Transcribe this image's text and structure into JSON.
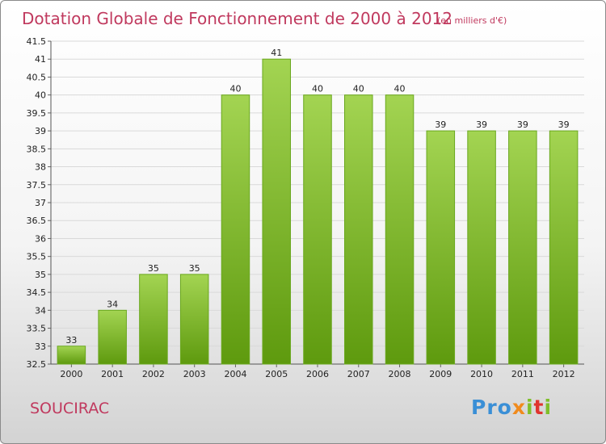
{
  "chart_data": {
    "type": "bar",
    "title": "Dotation Globale de Fonctionnement de 2000 à 2012",
    "subtitle": "(en milliers d'€)",
    "categories": [
      "2000",
      "2001",
      "2002",
      "2003",
      "2004",
      "2005",
      "2006",
      "2007",
      "2008",
      "2009",
      "2010",
      "2011",
      "2012"
    ],
    "values": [
      33,
      34,
      35,
      35,
      40,
      41,
      40,
      40,
      40,
      39,
      39,
      39,
      39
    ],
    "ylim": [
      32.5,
      41.5
    ],
    "yticks": [
      32.5,
      33,
      33.5,
      34,
      34.5,
      35,
      35.5,
      36,
      36.5,
      37,
      37.5,
      38,
      38.5,
      39,
      39.5,
      40,
      40.5,
      41,
      41.5
    ],
    "grid": true,
    "xlabel": "",
    "ylabel": ""
  },
  "commune": "SOUCIRAC",
  "logo": {
    "p1": "Pro",
    "p2": "x",
    "p3": "i",
    "p4": "t",
    "p5": "i"
  },
  "colors": {
    "bar_top": "#a3d452",
    "bar_bottom": "#5e9a0e",
    "bar_stroke": "#6aa81e",
    "grid": "#d9d9d9",
    "accent": "#c0395e"
  }
}
